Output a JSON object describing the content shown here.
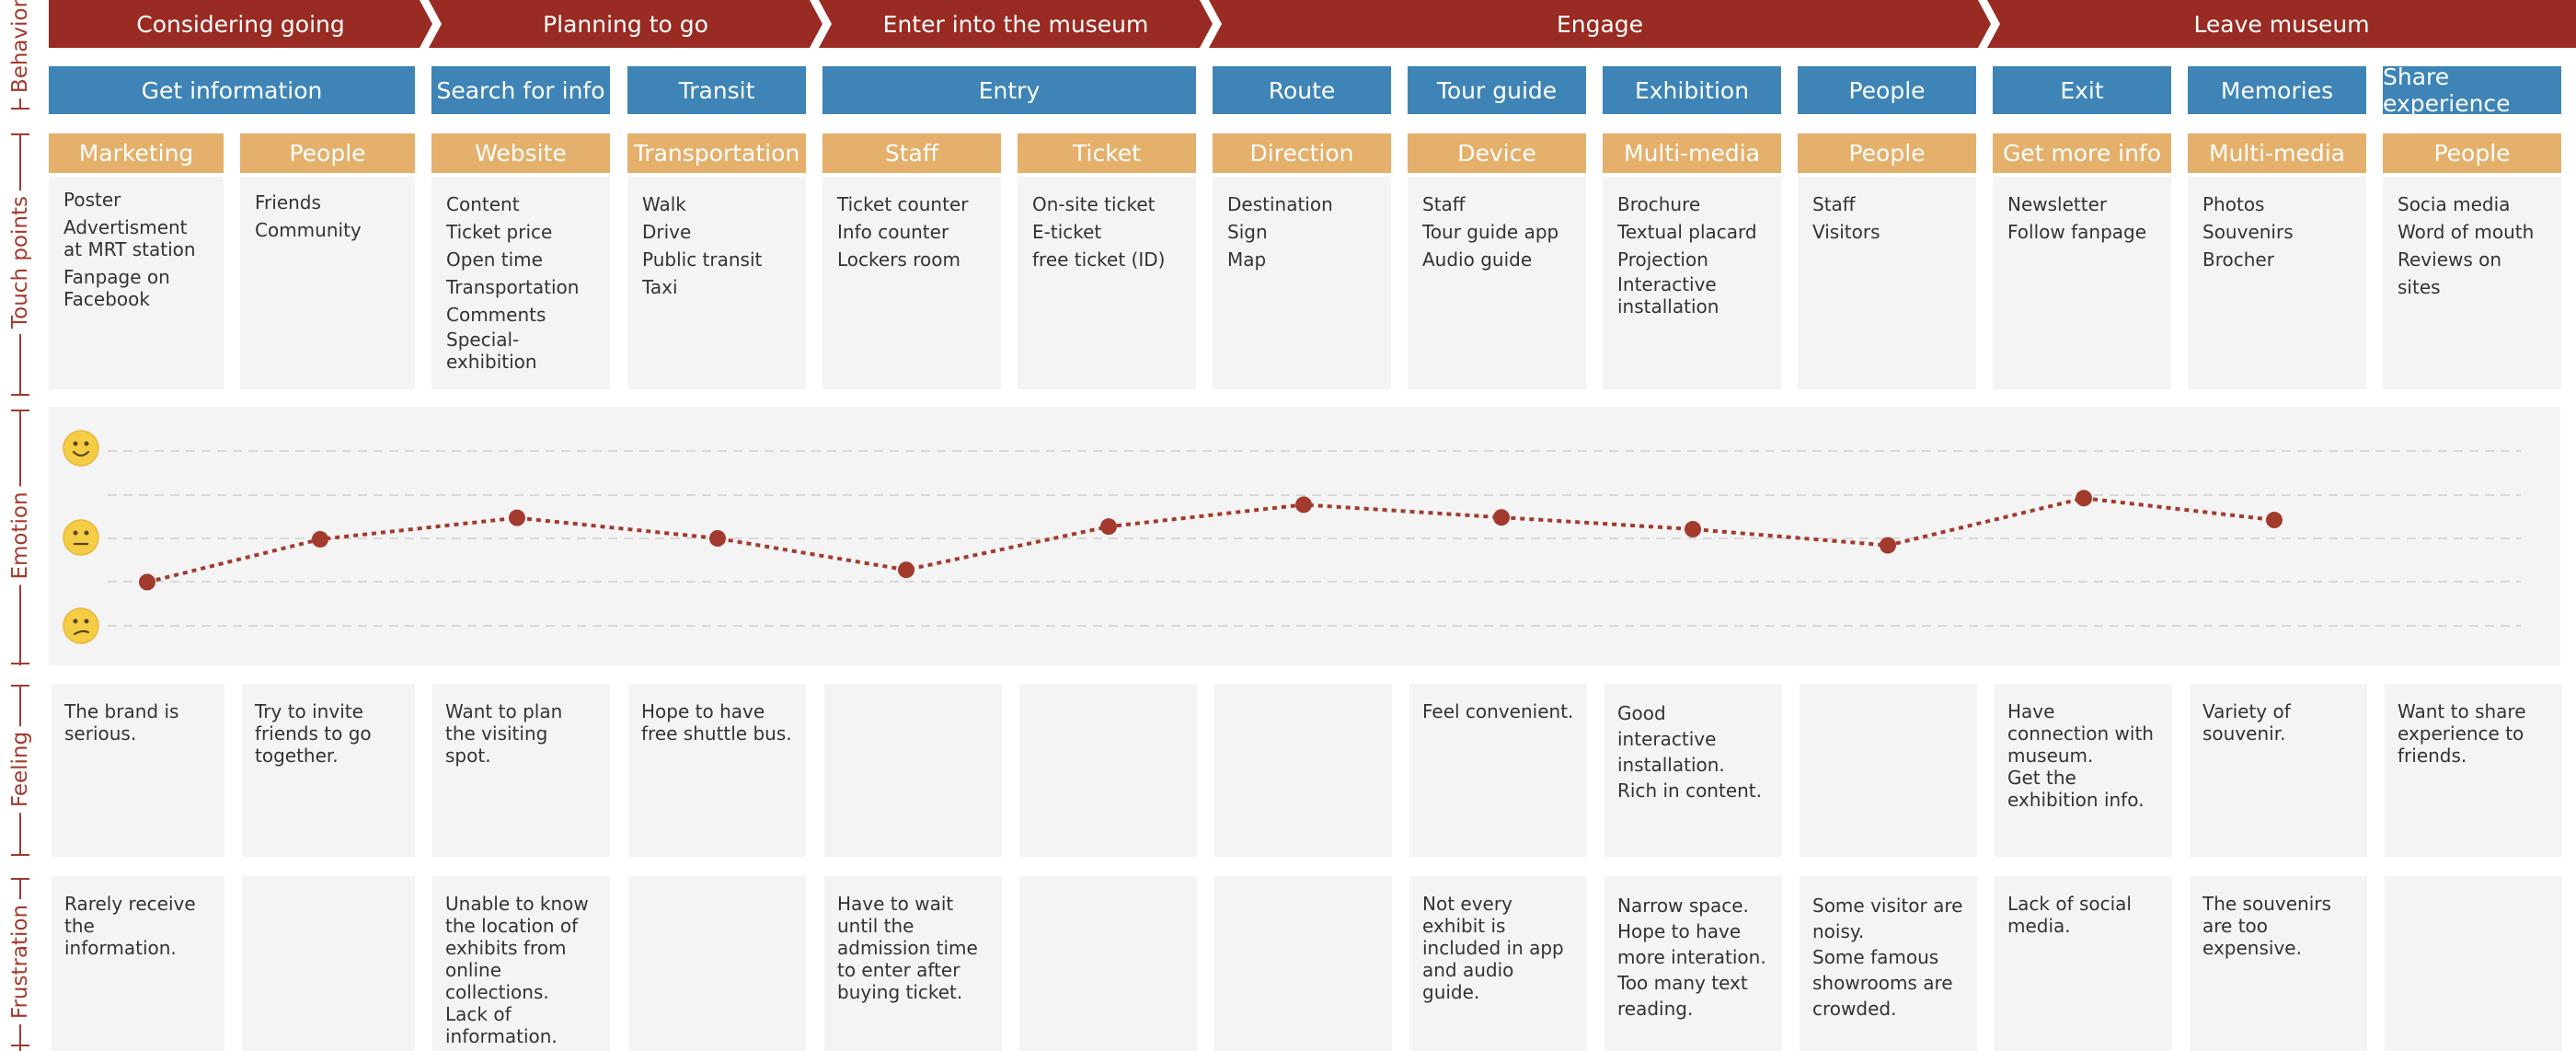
{
  "row_labels": {
    "behavior": "Behavior",
    "touch_points": "Touch points",
    "emotion": "Emotion",
    "feeling": "Feeling",
    "frustration": "Frustration"
  },
  "phases": [
    "Considering going",
    "Planning to go",
    "Enter into the museum",
    "Engage",
    "Leave museum"
  ],
  "stages": [
    "Get information",
    "Search for info",
    "Transit",
    "Entry",
    "Route",
    "Tour guide",
    "Exhibition",
    "People",
    "Exit",
    "Memories",
    "Share experience"
  ],
  "columns": [
    {
      "category": "Marketing",
      "touchpoints": [
        "Poster",
        "Advertisment at MRT station",
        "Fanpage on Facebook"
      ],
      "feeling": "The brand is serious.",
      "frustration": "Rarely receive the information."
    },
    {
      "category": "People",
      "touchpoints": [
        "Friends",
        "Community"
      ],
      "feeling": "Try to invite friends to go together.",
      "frustration": ""
    },
    {
      "category": "Website",
      "touchpoints": [
        "Content",
        "Ticket price",
        "Open time",
        "Transportation",
        "Comments",
        "Special-exhibition"
      ],
      "feeling": "Want to plan the visiting spot.",
      "frustration": "Unable to know the location of exhibits from online collections.\nLack of information."
    },
    {
      "category": "Transportation",
      "touchpoints": [
        "Walk",
        "Drive",
        "Public transit",
        "Taxi"
      ],
      "feeling": "Hope to have free shuttle bus.",
      "frustration": ""
    },
    {
      "category": "Staff",
      "touchpoints": [
        "Ticket counter",
        "Info counter",
        "Lockers room"
      ],
      "feeling": "",
      "frustration": "Have to wait until the admission time to enter after buying ticket."
    },
    {
      "category": "Ticket",
      "touchpoints": [
        "On-site ticket",
        "E-ticket",
        "free ticket (ID)"
      ],
      "feeling": "",
      "frustration": ""
    },
    {
      "category": "Direction",
      "touchpoints": [
        "Destination Sign",
        "Map"
      ],
      "feeling": "",
      "frustration": ""
    },
    {
      "category": "Device",
      "touchpoints": [
        "Staff",
        "Tour guide app",
        "Audio guide"
      ],
      "feeling": "Feel convenient.",
      "frustration": "Not every exhibit is included in app and audio guide."
    },
    {
      "category": "Multi-media",
      "touchpoints": [
        "Brochure",
        "Textual placard",
        "Projection",
        "Interactive installation"
      ],
      "feeling": "Good interactive installation.\nRich in content.",
      "frustration": "Narrow space.\nHope to have more interation.\nToo many text reading."
    },
    {
      "category": "People",
      "touchpoints": [
        "Staff",
        "Visitors"
      ],
      "feeling": "",
      "frustration": "Some visitor are noisy.\nSome famous showrooms are crowded."
    },
    {
      "category": "Get more info",
      "touchpoints": [
        "Newsletter",
        "Follow fanpage"
      ],
      "feeling": "Have connection with museum.\nGet the exhibition info.",
      "frustration": "Lack of social media."
    },
    {
      "category": "Multi-media",
      "touchpoints": [
        "Photos",
        "Souvenirs",
        "Brocher"
      ],
      "feeling": "Variety of souvenir.",
      "frustration": "The souvenirs are too expensive."
    },
    {
      "category": "People",
      "touchpoints": [
        "Socia media",
        "Word of mouth",
        "Reviews on sites"
      ],
      "feeling": "Want to share experience to friends.",
      "frustration": ""
    }
  ],
  "emotion_icons": [
    "happy-face",
    "neutral-face",
    "sad-face"
  ],
  "colors": {
    "phase": "#992b22",
    "stage": "#3e84b6",
    "category": "#e4b06b",
    "line": "#a33a2e",
    "panel": "#f4f4f4"
  },
  "chart_data": {
    "type": "line",
    "series": [
      {
        "values": [
          -1.0,
          -0.02,
          0.47,
          0.0,
          -0.72,
          0.27,
          0.77,
          0.48,
          0.21,
          -0.16,
          0.92,
          0.42
        ]
      }
    ],
    "ylim": [
      -2,
      2
    ],
    "grid": true
  }
}
